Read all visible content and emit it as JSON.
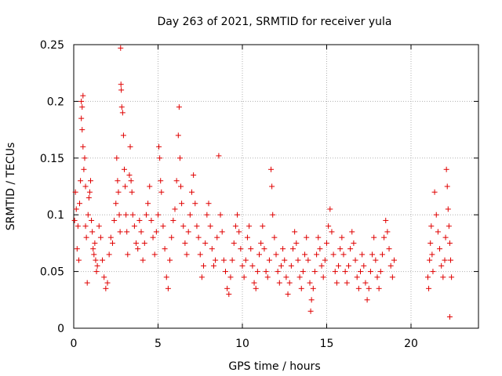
{
  "chart_data": {
    "type": "scatter",
    "title": "Day 263 of 2021, SRMTID for receiver yula",
    "xlabel": "GPS time / hours",
    "ylabel": "SRMTID / TECUs",
    "xlim": [
      0,
      24
    ],
    "ylim": [
      0,
      0.25
    ],
    "x_ticks": [
      0,
      5,
      10,
      15,
      20
    ],
    "x_tick_labels": [
      "0",
      "5",
      "10",
      "15",
      "20"
    ],
    "y_ticks": [
      0,
      0.05,
      0.1,
      0.15,
      0.2,
      0.25
    ],
    "y_tick_labels": [
      "0",
      "0.05",
      "0.1",
      "0.15",
      "0.2",
      "0.25"
    ],
    "grid": true,
    "marker": "+",
    "color": "#e00000",
    "series": [
      {
        "name": "SRMTID",
        "points": [
          [
            0.05,
            0.095
          ],
          [
            0.1,
            0.12
          ],
          [
            0.15,
            0.105
          ],
          [
            0.2,
            0.07
          ],
          [
            0.25,
            0.09
          ],
          [
            0.3,
            0.06
          ],
          [
            0.35,
            0.11
          ],
          [
            0.4,
            0.13
          ],
          [
            0.45,
            0.185
          ],
          [
            0.45,
            0.2
          ],
          [
            0.5,
            0.195
          ],
          [
            0.5,
            0.175
          ],
          [
            0.55,
            0.16
          ],
          [
            0.55,
            0.205
          ],
          [
            0.6,
            0.14
          ],
          [
            0.65,
            0.15
          ],
          [
            0.7,
            0.125
          ],
          [
            0.7,
            0.09
          ],
          [
            0.75,
            0.08
          ],
          [
            0.8,
            0.04
          ],
          [
            0.85,
            0.1
          ],
          [
            0.9,
            0.115
          ],
          [
            0.95,
            0.12
          ],
          [
            1.0,
            0.13
          ],
          [
            1.05,
            0.095
          ],
          [
            1.1,
            0.085
          ],
          [
            1.15,
            0.07
          ],
          [
            1.2,
            0.065
          ],
          [
            1.25,
            0.075
          ],
          [
            1.3,
            0.06
          ],
          [
            1.35,
            0.05
          ],
          [
            1.4,
            0.055
          ],
          [
            1.5,
            0.09
          ],
          [
            1.6,
            0.08
          ],
          [
            1.7,
            0.06
          ],
          [
            1.8,
            0.045
          ],
          [
            1.9,
            0.035
          ],
          [
            2.0,
            0.04
          ],
          [
            2.1,
            0.065
          ],
          [
            2.2,
            0.08
          ],
          [
            2.3,
            0.075
          ],
          [
            2.4,
            0.095
          ],
          [
            2.5,
            0.11
          ],
          [
            2.55,
            0.15
          ],
          [
            2.6,
            0.13
          ],
          [
            2.65,
            0.12
          ],
          [
            2.7,
            0.1
          ],
          [
            2.75,
            0.085
          ],
          [
            2.78,
            0.247
          ],
          [
            2.8,
            0.215
          ],
          [
            2.82,
            0.21
          ],
          [
            2.85,
            0.195
          ],
          [
            2.9,
            0.19
          ],
          [
            2.95,
            0.17
          ],
          [
            3.0,
            0.14
          ],
          [
            3.05,
            0.125
          ],
          [
            3.1,
            0.1
          ],
          [
            3.15,
            0.085
          ],
          [
            3.2,
            0.065
          ],
          [
            3.3,
            0.135
          ],
          [
            3.35,
            0.16
          ],
          [
            3.4,
            0.13
          ],
          [
            3.45,
            0.12
          ],
          [
            3.5,
            0.1
          ],
          [
            3.6,
            0.09
          ],
          [
            3.7,
            0.075
          ],
          [
            3.8,
            0.07
          ],
          [
            3.9,
            0.095
          ],
          [
            4.0,
            0.085
          ],
          [
            4.1,
            0.06
          ],
          [
            4.2,
            0.075
          ],
          [
            4.3,
            0.1
          ],
          [
            4.4,
            0.11
          ],
          [
            4.5,
            0.125
          ],
          [
            4.6,
            0.095
          ],
          [
            4.7,
            0.08
          ],
          [
            4.8,
            0.065
          ],
          [
            4.9,
            0.085
          ],
          [
            5.0,
            0.1
          ],
          [
            5.05,
            0.16
          ],
          [
            5.1,
            0.15
          ],
          [
            5.15,
            0.13
          ],
          [
            5.2,
            0.12
          ],
          [
            5.3,
            0.09
          ],
          [
            5.4,
            0.07
          ],
          [
            5.5,
            0.045
          ],
          [
            5.6,
            0.035
          ],
          [
            5.7,
            0.06
          ],
          [
            5.8,
            0.08
          ],
          [
            5.9,
            0.095
          ],
          [
            6.0,
            0.105
          ],
          [
            6.1,
            0.13
          ],
          [
            6.2,
            0.17
          ],
          [
            6.25,
            0.195
          ],
          [
            6.3,
            0.15
          ],
          [
            6.35,
            0.125
          ],
          [
            6.4,
            0.11
          ],
          [
            6.5,
            0.09
          ],
          [
            6.6,
            0.075
          ],
          [
            6.7,
            0.065
          ],
          [
            6.8,
            0.085
          ],
          [
            6.9,
            0.1
          ],
          [
            7.0,
            0.12
          ],
          [
            7.1,
            0.135
          ],
          [
            7.2,
            0.11
          ],
          [
            7.3,
            0.09
          ],
          [
            7.4,
            0.08
          ],
          [
            7.5,
            0.065
          ],
          [
            7.6,
            0.045
          ],
          [
            7.7,
            0.055
          ],
          [
            7.8,
            0.075
          ],
          [
            7.9,
            0.1
          ],
          [
            8.0,
            0.11
          ],
          [
            8.1,
            0.09
          ],
          [
            8.2,
            0.07
          ],
          [
            8.3,
            0.055
          ],
          [
            8.4,
            0.06
          ],
          [
            8.5,
            0.08
          ],
          [
            8.6,
            0.152
          ],
          [
            8.7,
            0.1
          ],
          [
            8.8,
            0.085
          ],
          [
            8.9,
            0.06
          ],
          [
            9.0,
            0.05
          ],
          [
            9.1,
            0.035
          ],
          [
            9.2,
            0.03
          ],
          [
            9.3,
            0.045
          ],
          [
            9.4,
            0.06
          ],
          [
            9.5,
            0.075
          ],
          [
            9.6,
            0.09
          ],
          [
            9.7,
            0.1
          ],
          [
            9.8,
            0.085
          ],
          [
            9.9,
            0.07
          ],
          [
            10.0,
            0.055
          ],
          [
            10.1,
            0.045
          ],
          [
            10.2,
            0.06
          ],
          [
            10.3,
            0.08
          ],
          [
            10.4,
            0.09
          ],
          [
            10.5,
            0.07
          ],
          [
            10.6,
            0.055
          ],
          [
            10.7,
            0.04
          ],
          [
            10.8,
            0.035
          ],
          [
            10.9,
            0.05
          ],
          [
            11.0,
            0.065
          ],
          [
            11.1,
            0.075
          ],
          [
            11.2,
            0.09
          ],
          [
            11.3,
            0.07
          ],
          [
            11.4,
            0.05
          ],
          [
            11.5,
            0.045
          ],
          [
            11.6,
            0.06
          ],
          [
            11.7,
            0.14
          ],
          [
            11.75,
            0.125
          ],
          [
            11.8,
            0.1
          ],
          [
            11.9,
            0.08
          ],
          [
            12.0,
            0.065
          ],
          [
            12.1,
            0.05
          ],
          [
            12.2,
            0.04
          ],
          [
            12.3,
            0.055
          ],
          [
            12.4,
            0.07
          ],
          [
            12.5,
            0.06
          ],
          [
            12.6,
            0.045
          ],
          [
            12.7,
            0.03
          ],
          [
            12.8,
            0.04
          ],
          [
            12.9,
            0.055
          ],
          [
            13.0,
            0.07
          ],
          [
            13.1,
            0.085
          ],
          [
            13.2,
            0.075
          ],
          [
            13.3,
            0.06
          ],
          [
            13.4,
            0.045
          ],
          [
            13.5,
            0.035
          ],
          [
            13.6,
            0.05
          ],
          [
            13.7,
            0.065
          ],
          [
            13.8,
            0.08
          ],
          [
            13.9,
            0.06
          ],
          [
            14.0,
            0.04
          ],
          [
            14.05,
            0.015
          ],
          [
            14.1,
            0.025
          ],
          [
            14.2,
            0.035
          ],
          [
            14.3,
            0.05
          ],
          [
            14.4,
            0.065
          ],
          [
            14.5,
            0.08
          ],
          [
            14.6,
            0.07
          ],
          [
            14.7,
            0.055
          ],
          [
            14.8,
            0.045
          ],
          [
            14.9,
            0.06
          ],
          [
            15.0,
            0.075
          ],
          [
            15.1,
            0.09
          ],
          [
            15.2,
            0.105
          ],
          [
            15.3,
            0.085
          ],
          [
            15.4,
            0.065
          ],
          [
            15.5,
            0.05
          ],
          [
            15.6,
            0.04
          ],
          [
            15.7,
            0.055
          ],
          [
            15.8,
            0.07
          ],
          [
            15.9,
            0.08
          ],
          [
            16.0,
            0.065
          ],
          [
            16.1,
            0.05
          ],
          [
            16.2,
            0.04
          ],
          [
            16.3,
            0.055
          ],
          [
            16.4,
            0.07
          ],
          [
            16.5,
            0.085
          ],
          [
            16.6,
            0.075
          ],
          [
            16.7,
            0.06
          ],
          [
            16.8,
            0.045
          ],
          [
            16.9,
            0.035
          ],
          [
            17.0,
            0.05
          ],
          [
            17.1,
            0.065
          ],
          [
            17.2,
            0.055
          ],
          [
            17.3,
            0.04
          ],
          [
            17.4,
            0.025
          ],
          [
            17.5,
            0.035
          ],
          [
            17.6,
            0.05
          ],
          [
            17.7,
            0.065
          ],
          [
            17.8,
            0.08
          ],
          [
            17.9,
            0.06
          ],
          [
            18.0,
            0.045
          ],
          [
            18.1,
            0.035
          ],
          [
            18.2,
            0.05
          ],
          [
            18.3,
            0.065
          ],
          [
            18.4,
            0.08
          ],
          [
            18.5,
            0.095
          ],
          [
            18.6,
            0.085
          ],
          [
            18.7,
            0.07
          ],
          [
            18.8,
            0.055
          ],
          [
            18.9,
            0.045
          ],
          [
            19.0,
            0.06
          ],
          [
            21.0,
            0.045
          ],
          [
            21.05,
            0.035
          ],
          [
            21.1,
            0.06
          ],
          [
            21.15,
            0.075
          ],
          [
            21.2,
            0.09
          ],
          [
            21.25,
            0.065
          ],
          [
            21.3,
            0.05
          ],
          [
            21.4,
            0.12
          ],
          [
            21.5,
            0.1
          ],
          [
            21.6,
            0.085
          ],
          [
            21.7,
            0.07
          ],
          [
            21.8,
            0.055
          ],
          [
            21.9,
            0.045
          ],
          [
            22.0,
            0.06
          ],
          [
            22.05,
            0.08
          ],
          [
            22.1,
            0.14
          ],
          [
            22.15,
            0.125
          ],
          [
            22.2,
            0.105
          ],
          [
            22.25,
            0.09
          ],
          [
            22.3,
            0.075
          ],
          [
            22.35,
            0.06
          ],
          [
            22.4,
            0.045
          ],
          [
            22.3,
            0.01
          ]
        ]
      }
    ]
  }
}
